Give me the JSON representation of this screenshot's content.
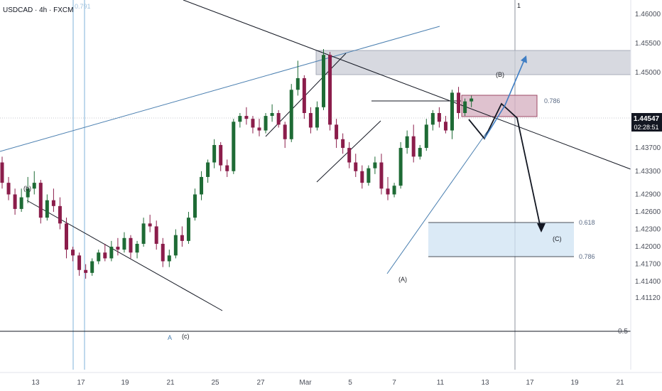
{
  "header": {
    "symbol_label": "USDCAD · 4h · FXCM",
    "faint_fib_label": "0.791"
  },
  "price_axis": {
    "ticks": [
      "1.46000",
      "1.45500",
      "1.45000",
      "1.44100",
      "1.43700",
      "1.43300",
      "1.42900",
      "1.42600",
      "1.42300",
      "1.42000",
      "1.41700",
      "1.41400",
      "1.41120"
    ],
    "current_price": "1.44547",
    "countdown": "02:28:51",
    "current_price_color": "#131722",
    "fib_label_05": "0.5"
  },
  "time_axis": {
    "labels": [
      "13",
      "17",
      "19",
      "21",
      "25",
      "27",
      "Mar",
      "5",
      "7",
      "11",
      "13",
      "17",
      "19",
      "21"
    ]
  },
  "annotations": {
    "wave_b_small": "(b)",
    "wave_a_blue": "A",
    "wave_c_small": "(c)",
    "wave_A": "(A)",
    "wave_B": "(B)",
    "wave_C": "(C)",
    "top_marker": "1"
  },
  "fib_box": {
    "label_786_upper": "0.786",
    "label_618": "0.618",
    "label_786_lower": "0.786"
  },
  "colors": {
    "bull": "#1e6b35",
    "bear": "#8b1d4b",
    "trend_blue": "#4a7fb0",
    "zone_gray": "#c9ccd6",
    "zone_pink": "#d7b3c3",
    "zone_blue": "#cfe3f3"
  },
  "chart_data": {
    "type": "candlestick",
    "symbol": "USDCAD",
    "timeframe": "4h",
    "source": "FXCM",
    "last_price": 1.44547,
    "candles_ohlc": [
      [
        1.4345,
        1.4355,
        1.43,
        1.431
      ],
      [
        1.431,
        1.432,
        1.428,
        1.429
      ],
      [
        1.429,
        1.43,
        1.4255,
        1.4265
      ],
      [
        1.4265,
        1.43,
        1.426,
        1.4285
      ],
      [
        1.4285,
        1.432,
        1.4275,
        1.43
      ],
      [
        1.43,
        1.433,
        1.429,
        1.431
      ],
      [
        1.431,
        1.4315,
        1.424,
        1.425
      ],
      [
        1.425,
        1.429,
        1.4245,
        1.428
      ],
      [
        1.428,
        1.43,
        1.426,
        1.427
      ],
      [
        1.427,
        1.4285,
        1.423,
        1.424
      ],
      [
        1.424,
        1.425,
        1.418,
        1.4195
      ],
      [
        1.4195,
        1.42,
        1.4175,
        1.4185
      ],
      [
        1.4185,
        1.419,
        1.415,
        1.416
      ],
      [
        1.416,
        1.417,
        1.4145,
        1.4155
      ],
      [
        1.4155,
        1.418,
        1.415,
        1.4175
      ],
      [
        1.4175,
        1.4195,
        1.417,
        1.419
      ],
      [
        1.419,
        1.4205,
        1.4175,
        1.418
      ],
      [
        1.418,
        1.421,
        1.4175,
        1.42
      ],
      [
        1.42,
        1.4215,
        1.4185,
        1.4195
      ],
      [
        1.4195,
        1.4225,
        1.419,
        1.4215
      ],
      [
        1.4215,
        1.422,
        1.418,
        1.419
      ],
      [
        1.419,
        1.421,
        1.418,
        1.4205
      ],
      [
        1.4205,
        1.425,
        1.42,
        1.424
      ],
      [
        1.424,
        1.4255,
        1.4225,
        1.4235
      ],
      [
        1.4235,
        1.4245,
        1.4195,
        1.4205
      ],
      [
        1.4205,
        1.4215,
        1.4165,
        1.4175
      ],
      [
        1.4175,
        1.4195,
        1.4165,
        1.4185
      ],
      [
        1.4185,
        1.423,
        1.418,
        1.422
      ],
      [
        1.422,
        1.4235,
        1.42,
        1.421
      ],
      [
        1.421,
        1.426,
        1.4205,
        1.425
      ],
      [
        1.425,
        1.43,
        1.4245,
        1.429
      ],
      [
        1.429,
        1.433,
        1.428,
        1.432
      ],
      [
        1.432,
        1.435,
        1.431,
        1.4345
      ],
      [
        1.4345,
        1.4385,
        1.4335,
        1.4375
      ],
      [
        1.4375,
        1.438,
        1.433,
        1.434
      ],
      [
        1.434,
        1.435,
        1.432,
        1.433
      ],
      [
        1.433,
        1.442,
        1.4325,
        1.4415
      ],
      [
        1.4415,
        1.443,
        1.4405,
        1.4425
      ],
      [
        1.4425,
        1.444,
        1.441,
        1.442
      ],
      [
        1.442,
        1.4425,
        1.4395,
        1.4405
      ],
      [
        1.4405,
        1.442,
        1.439,
        1.44
      ],
      [
        1.44,
        1.443,
        1.4395,
        1.4425
      ],
      [
        1.4425,
        1.4445,
        1.4415,
        1.443
      ],
      [
        1.443,
        1.4435,
        1.4405,
        1.441
      ],
      [
        1.441,
        1.4415,
        1.437,
        1.4385
      ],
      [
        1.4385,
        1.448,
        1.438,
        1.447
      ],
      [
        1.447,
        1.452,
        1.446,
        1.449
      ],
      [
        1.449,
        1.4495,
        1.442,
        1.443
      ],
      [
        1.443,
        1.444,
        1.4395,
        1.4405
      ],
      [
        1.4405,
        1.445,
        1.44,
        1.444
      ],
      [
        1.444,
        1.454,
        1.4435,
        1.453
      ],
      [
        1.453,
        1.4535,
        1.44,
        1.441
      ],
      [
        1.441,
        1.442,
        1.437,
        1.4385
      ],
      [
        1.4385,
        1.4395,
        1.436,
        1.437
      ],
      [
        1.437,
        1.438,
        1.4335,
        1.4345
      ],
      [
        1.4345,
        1.436,
        1.432,
        1.433
      ],
      [
        1.433,
        1.434,
        1.43,
        1.431
      ],
      [
        1.431,
        1.434,
        1.4305,
        1.4335
      ],
      [
        1.4335,
        1.4355,
        1.4325,
        1.4345
      ],
      [
        1.4345,
        1.436,
        1.429,
        1.43
      ],
      [
        1.43,
        1.432,
        1.428,
        1.429
      ],
      [
        1.429,
        1.431,
        1.4285,
        1.4305
      ],
      [
        1.4305,
        1.438,
        1.43,
        1.437
      ],
      [
        1.437,
        1.44,
        1.436,
        1.439
      ],
      [
        1.439,
        1.441,
        1.4345,
        1.4355
      ],
      [
        1.4355,
        1.4375,
        1.435,
        1.437
      ],
      [
        1.437,
        1.442,
        1.4365,
        1.441
      ],
      [
        1.441,
        1.4435,
        1.44,
        1.443
      ],
      [
        1.443,
        1.444,
        1.4405,
        1.4415
      ],
      [
        1.4415,
        1.4425,
        1.4395,
        1.44
      ],
      [
        1.44,
        1.447,
        1.4385,
        1.4465
      ],
      [
        1.4465,
        1.4475,
        1.442,
        1.443
      ],
      [
        1.443,
        1.4455,
        1.4425,
        1.445
      ],
      [
        1.445,
        1.446,
        1.444,
        1.4455
      ]
    ],
    "zones": {
      "resistance_top": [
        1.451,
        1.4556
      ],
      "b_target": [
        1.4455,
        1.448
      ],
      "c_target_fib": {
        "0.618": 1.43,
        "0.786": 1.4265
      },
      "fib_0_5": 1.4173
    }
  }
}
